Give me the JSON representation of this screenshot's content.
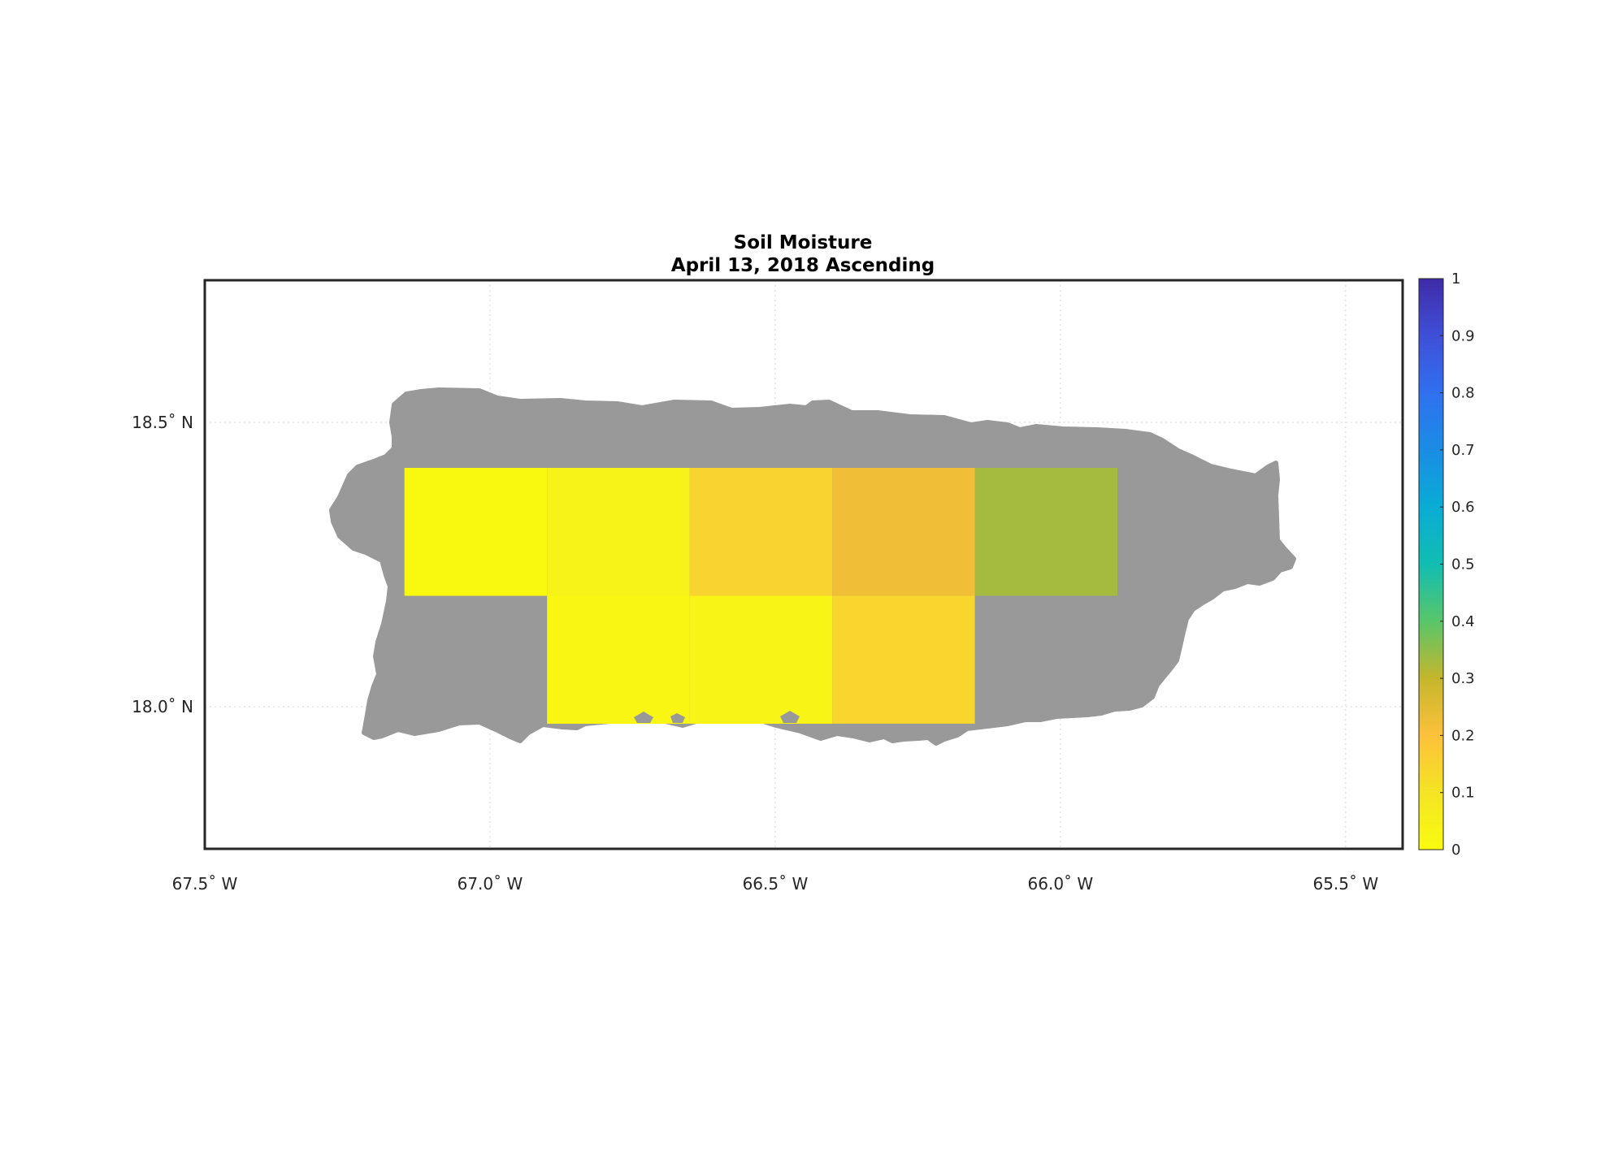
{
  "title": "Soil Moisture",
  "subtitle": "April 13, 2018 Ascending",
  "x_ticks": [
    {
      "value": -67.5,
      "label": "67.5",
      "hemi": "W"
    },
    {
      "value": -67.0,
      "label": "67.0",
      "hemi": "W"
    },
    {
      "value": -66.5,
      "label": "66.5",
      "hemi": "W"
    },
    {
      "value": -66.0,
      "label": "66.0",
      "hemi": "W"
    },
    {
      "value": -65.5,
      "label": "65.5",
      "hemi": "W"
    }
  ],
  "y_ticks": [
    {
      "value": 18.5,
      "label": "18.5",
      "hemi": "N"
    },
    {
      "value": 18.0,
      "label": "18.0",
      "hemi": "N"
    }
  ],
  "colorbar": {
    "ticks": [
      "0",
      "0.1",
      "0.2",
      "0.3",
      "0.4",
      "0.5",
      "0.6",
      "0.7",
      "0.8",
      "0.9",
      "1"
    ],
    "min": 0,
    "max": 1
  },
  "colors": {
    "land": "#999999",
    "grid": "#d9d9d9",
    "frame": "#262626"
  },
  "chart_data": {
    "type": "heatmap",
    "title": "Soil Moisture",
    "subtitle": "April 13, 2018 Ascending",
    "xlim": [
      -67.5,
      -65.4
    ],
    "ylim": [
      17.75,
      18.75
    ],
    "grid": true,
    "value_range": [
      0,
      1
    ],
    "cells": [
      {
        "lon0": -67.15,
        "lon1": -66.9,
        "lat0": 18.195,
        "lat1": 18.42,
        "value": 0.01
      },
      {
        "lon0": -66.9,
        "lon1": -66.65,
        "lat0": 18.195,
        "lat1": 18.42,
        "value": 0.04
      },
      {
        "lon0": -66.65,
        "lon1": -66.4,
        "lat0": 18.195,
        "lat1": 18.42,
        "value": 0.15
      },
      {
        "lon0": -66.4,
        "lon1": -66.15,
        "lat0": 18.195,
        "lat1": 18.42,
        "value": 0.22
      },
      {
        "lon0": -66.15,
        "lon1": -65.9,
        "lat0": 18.195,
        "lat1": 18.42,
        "value": 0.33
      },
      {
        "lon0": -66.9,
        "lon1": -66.65,
        "lat0": 17.97,
        "lat1": 18.195,
        "value": 0.02
      },
      {
        "lon0": -66.65,
        "lon1": -66.4,
        "lat0": 17.97,
        "lat1": 18.195,
        "value": 0.03
      },
      {
        "lon0": -66.4,
        "lon1": -66.15,
        "lat0": 17.97,
        "lat1": 18.195,
        "value": 0.14
      }
    ]
  }
}
